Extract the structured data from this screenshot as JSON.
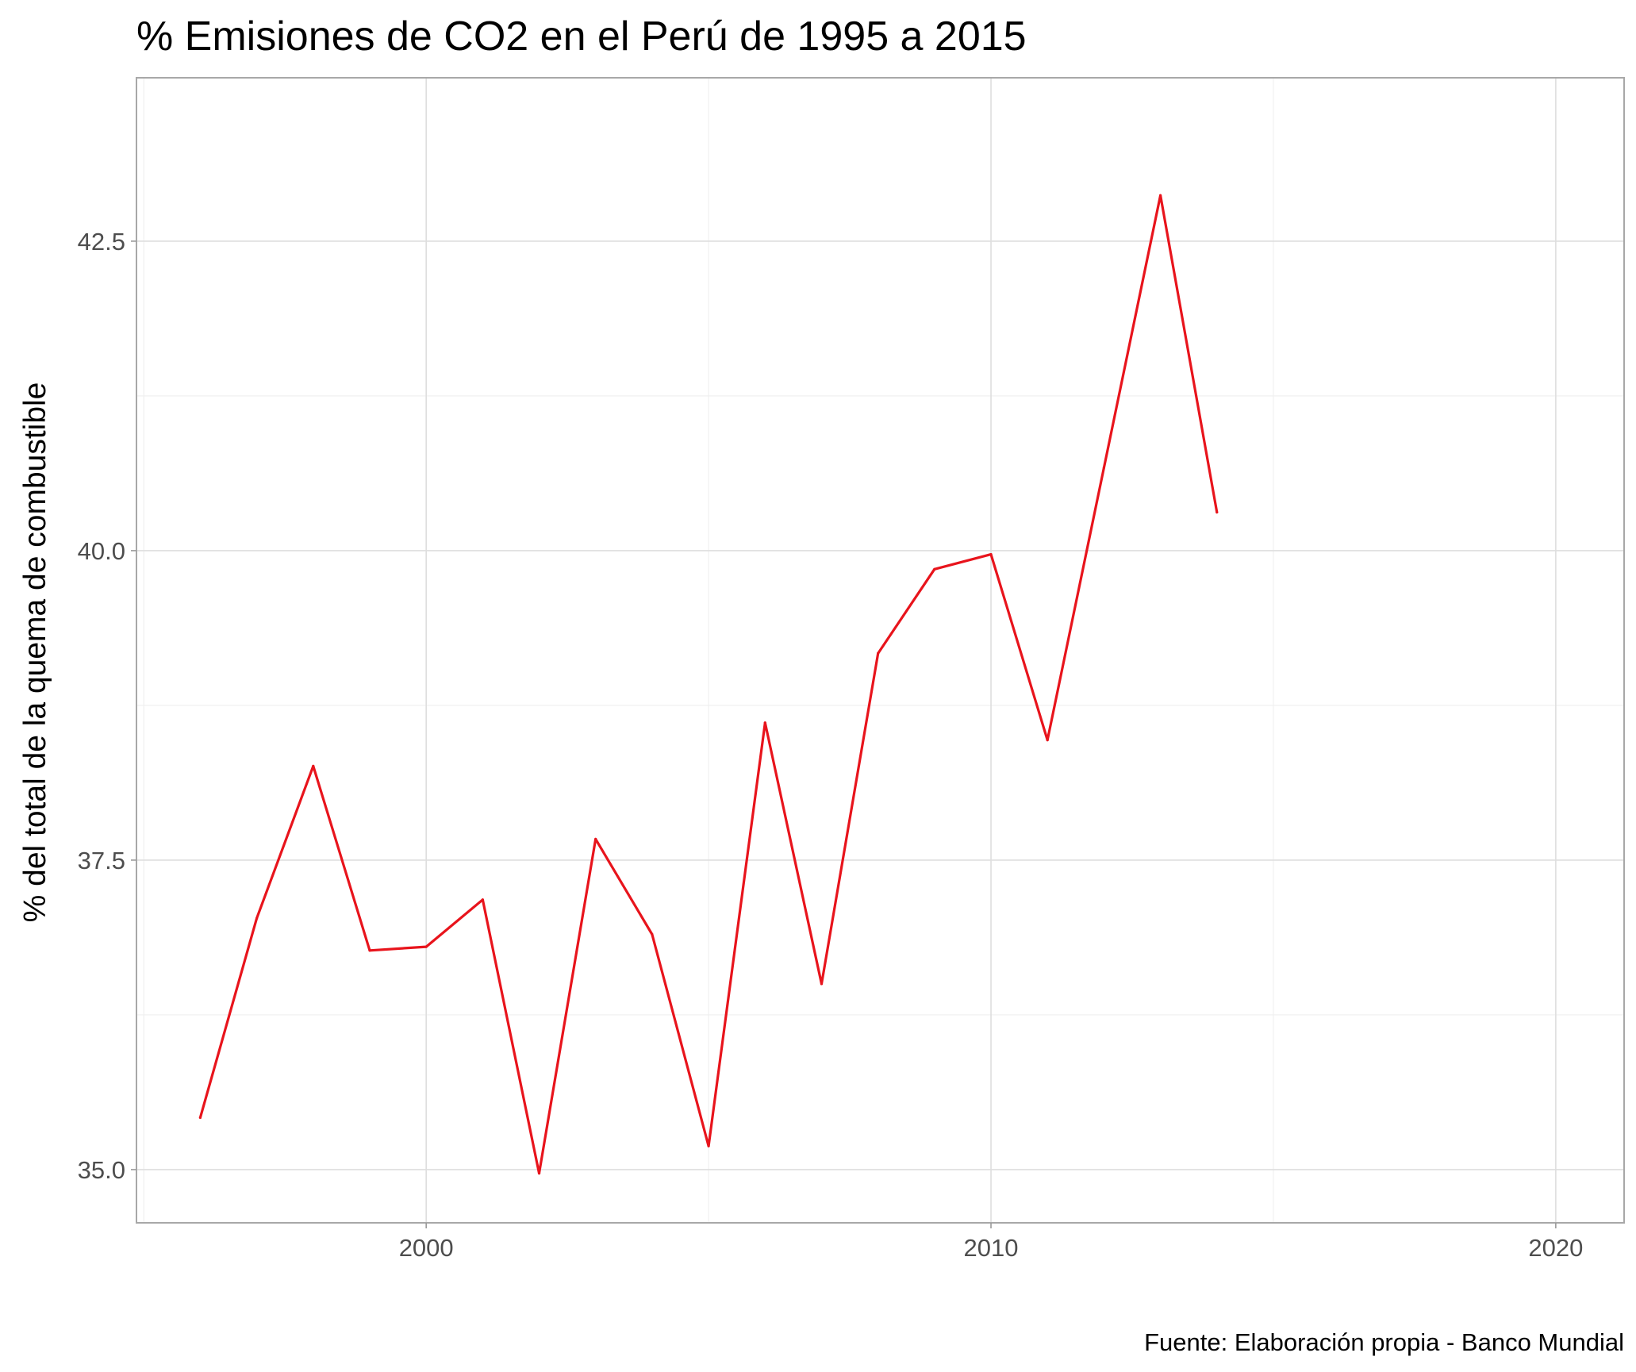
{
  "chart_data": {
    "type": "line",
    "title": "% Emisiones de CO2 en el Perú de 1995 a 2015",
    "subtitle": "",
    "xlabel": "",
    "ylabel": "% del total de la quema de combustible",
    "caption": "Fuente: Elaboración propia - Banco Mundial",
    "xlim": [
      1994.87,
      2021.21
    ],
    "ylim": [
      34.57,
      43.82
    ],
    "x_ticks": [
      2000,
      2010,
      2020
    ],
    "x_tick_labels": [
      "2000",
      "2010",
      "2020"
    ],
    "x_minor_ticks": [
      1995,
      2005,
      2015
    ],
    "y_ticks": [
      35.0,
      37.5,
      40.0,
      42.5
    ],
    "y_tick_labels": [
      "35.0",
      "37.5",
      "40.0",
      "42.5"
    ],
    "y_minor_ticks": [
      36.25,
      38.75,
      41.25
    ],
    "grid": true,
    "legend": "none",
    "series": [
      {
        "color": "#e8141c",
        "x": [
          1996,
          1997,
          1998,
          1999,
          2000,
          2001,
          2002,
          2003,
          2004,
          2005,
          2006,
          2007,
          2008,
          2009,
          2010,
          2011,
          2012,
          2013,
          2014
        ],
        "y": [
          35.42,
          37.03,
          38.26,
          36.77,
          36.8,
          37.18,
          34.97,
          37.67,
          36.9,
          35.19,
          38.61,
          36.5,
          39.17,
          39.85,
          39.97,
          38.47,
          40.67,
          42.87,
          40.31
        ]
      }
    ]
  }
}
